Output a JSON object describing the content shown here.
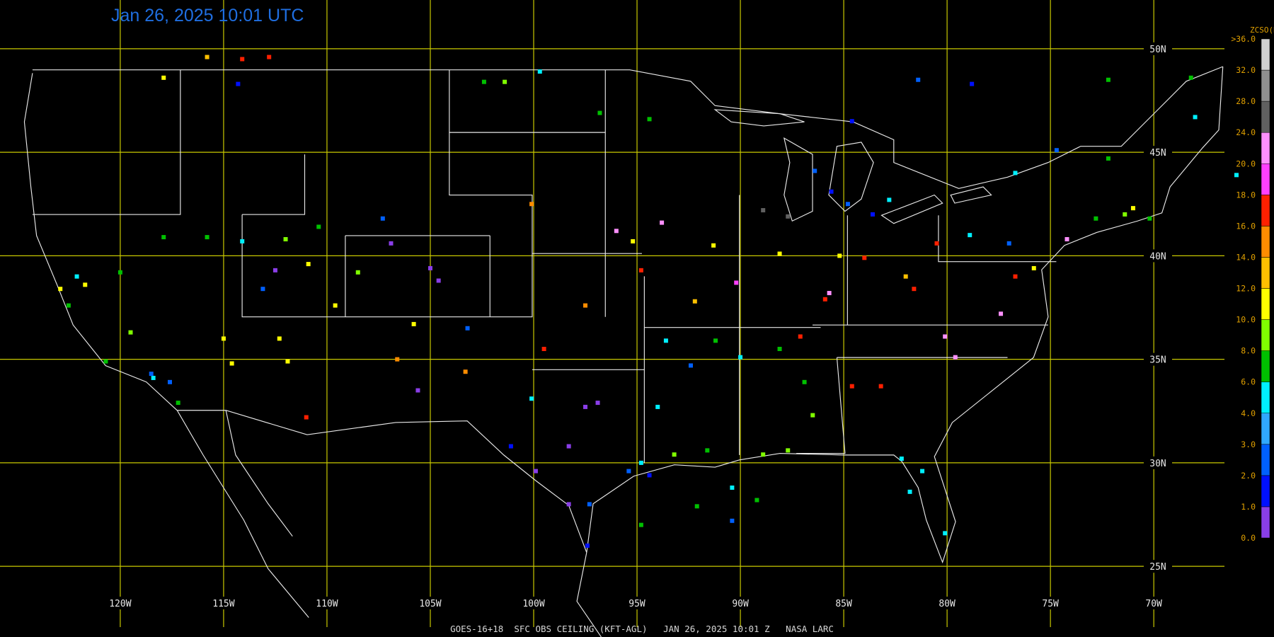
{
  "title": "Jan 26, 2025 10:01 UTC",
  "footer": "GOES-16+18  SFC OBS CEILING (KFT-AGL)   JAN 26, 2025 10:01 Z   NASA LARC",
  "map": {
    "lon_lines": [
      {
        "value": -120,
        "label": "120W"
      },
      {
        "value": -115,
        "label": "115W"
      },
      {
        "value": -110,
        "label": "110W"
      },
      {
        "value": -105,
        "label": "105W"
      },
      {
        "value": -100,
        "label": "100W"
      },
      {
        "value": -95,
        "label": "95W"
      },
      {
        "value": -90,
        "label": "90W"
      },
      {
        "value": -85,
        "label": "85W"
      },
      {
        "value": -80,
        "label": "80W"
      },
      {
        "value": -75,
        "label": "75W"
      },
      {
        "value": -70,
        "label": "70W"
      }
    ],
    "lat_lines": [
      {
        "value": 50,
        "label": "50N"
      },
      {
        "value": 45,
        "label": "45N"
      },
      {
        "value": 40,
        "label": "40N"
      },
      {
        "value": 35,
        "label": "35N"
      },
      {
        "value": 30,
        "label": "30N"
      },
      {
        "value": 25,
        "label": "25N"
      }
    ],
    "grid_color": "#c8c800"
  },
  "colorbar": {
    "title": "ZCSO(Kft)",
    "ticks": [
      {
        "value": 0,
        "label": "0.0"
      },
      {
        "value": 1,
        "label": "1.0"
      },
      {
        "value": 2,
        "label": "2.0"
      },
      {
        "value": 3,
        "label": "3.0"
      },
      {
        "value": 4,
        "label": "4.0"
      },
      {
        "value": 6,
        "label": "6.0"
      },
      {
        "value": 8,
        "label": "8.0"
      },
      {
        "value": 10,
        "label": "10.0"
      },
      {
        "value": 12,
        "label": "12.0"
      },
      {
        "value": 14,
        "label": "14.0"
      },
      {
        "value": 16,
        "label": "16.0"
      },
      {
        "value": 18,
        "label": "18.0"
      },
      {
        "value": 20,
        "label": "20.0"
      },
      {
        "value": 24,
        "label": "24.0"
      },
      {
        "value": 28,
        "label": "28.0"
      },
      {
        "value": 32,
        "label": "32.0"
      },
      {
        "value": 36,
        "label": ">36.0"
      }
    ],
    "colors": [
      "#8a3ee8",
      "#0010ff",
      "#0060ff",
      "#30a8ff",
      "#00f0ff",
      "#00c000",
      "#80ff00",
      "#ffff00",
      "#ffc000",
      "#ff8c00",
      "#ff2000",
      "#ff40ff",
      "#ff90ff",
      "#606060",
      "#909090",
      "#d0d0d0"
    ]
  },
  "stations": {
    "lon": [
      -115.8,
      -114.1,
      -112.8,
      -117.9,
      -114.3,
      -102.4,
      -101.4,
      -99.7,
      -96.8,
      -94.4,
      -81.4,
      -78.8,
      -72.2,
      -68.2,
      -68.0,
      -84.6,
      -86.4,
      -85.6,
      -84.8,
      -83.6,
      -82.8,
      -80.5,
      -78.9,
      -77.0,
      -74.2,
      -72.8,
      -71.4,
      -70.2,
      -76.7,
      -81.6,
      -80.1,
      -84.6,
      -83.2,
      -87.1,
      -88.1,
      -86.9,
      -86.5,
      -87.7,
      -88.9,
      -90.0,
      -91.2,
      -92.4,
      -93.6,
      -94.0,
      -94.8,
      -93.2,
      -91.6,
      -96.9,
      -97.5,
      -98.3,
      -99.9,
      -95.4,
      -94.4,
      -97.3,
      -97.4,
      -98.3,
      -101.1,
      -99.5,
      -97.5,
      -92.2,
      -94.8,
      -96.0,
      -93.8,
      -95.2,
      -91.3,
      -88.1,
      -88.9,
      -87.7,
      -90.2,
      -85.9,
      -85.7,
      -82.0,
      -84.0,
      -85.2,
      -100.1,
      -105.0,
      -104.6,
      -105.8,
      -106.6,
      -105.6,
      -103.3,
      -103.2,
      -107.3,
      -106.9,
      -111.0,
      -111.9,
      -112.3,
      -114.1,
      -112.5,
      -113.1,
      -110.9,
      -109.6,
      -110.4,
      -112.0,
      -120.0,
      -122.1,
      -122.5,
      -121.7,
      -122.9,
      -120.7,
      -118.4,
      -117.6,
      -117.2,
      -118.5,
      -119.5,
      -115.8,
      -117.9,
      -115.0,
      -114.6,
      -108.5,
      -81.2,
      -81.8,
      -80.1,
      -82.2,
      -71.0,
      -74.7,
      -76.7,
      -75.8,
      -77.4,
      -79.6,
      -90.4,
      -89.2,
      -94.8,
      -92.1,
      -90.4,
      -66.0,
      -72.2,
      -100.1
    ],
    "lat": [
      49.6,
      49.5,
      49.6,
      48.6,
      48.3,
      48.4,
      48.4,
      48.9,
      46.9,
      46.6,
      48.5,
      48.3,
      48.5,
      48.6,
      46.7,
      46.5,
      44.1,
      43.1,
      42.5,
      42.0,
      42.7,
      40.6,
      41.0,
      40.6,
      40.8,
      41.8,
      42.0,
      41.8,
      39.0,
      38.4,
      36.1,
      33.7,
      33.7,
      36.1,
      35.5,
      33.9,
      32.3,
      30.6,
      30.4,
      35.1,
      35.9,
      34.7,
      35.9,
      32.7,
      30.0,
      30.4,
      30.6,
      32.9,
      32.7,
      30.8,
      29.6,
      29.6,
      29.4,
      28.0,
      26.0,
      28.0,
      30.8,
      35.5,
      37.6,
      37.8,
      39.3,
      41.2,
      41.6,
      40.7,
      40.5,
      40.1,
      42.2,
      41.9,
      38.7,
      37.9,
      38.2,
      39.0,
      39.9,
      40.0,
      42.5,
      39.4,
      38.8,
      36.7,
      35.0,
      33.5,
      34.4,
      36.5,
      41.8,
      40.6,
      32.2,
      34.9,
      36.0,
      40.7,
      39.3,
      38.4,
      39.6,
      37.6,
      41.4,
      40.8,
      39.2,
      39.0,
      37.6,
      38.6,
      38.4,
      34.9,
      34.1,
      33.9,
      32.9,
      34.3,
      36.3,
      40.9,
      40.9,
      36.0,
      34.8,
      39.2,
      29.6,
      28.6,
      26.6,
      30.2,
      42.3,
      45.1,
      44.0,
      39.4,
      37.2,
      35.1,
      28.8,
      28.2,
      27.0,
      27.9,
      27.2,
      43.9,
      44.7,
      33.1
    ],
    "ceiling": [
      13,
      17,
      17,
      11,
      1.5,
      7,
      9,
      5,
      7,
      7,
      2.5,
      1.5,
      7,
      7,
      5,
      1.5,
      2.5,
      1.5,
      2.5,
      1.5,
      5,
      17,
      5,
      2.5,
      22,
      7,
      9,
      7,
      17,
      17,
      22,
      17,
      17,
      17,
      7,
      7,
      9,
      9,
      9,
      5,
      7,
      2.5,
      5,
      5,
      5,
      9,
      7,
      0.5,
      0.5,
      0.5,
      0.5,
      2.5,
      1.5,
      2.5,
      1.5,
      0.5,
      1.5,
      17,
      14,
      13,
      17,
      22,
      22,
      11,
      11,
      11,
      26,
      26,
      19,
      17,
      22,
      13,
      17,
      11,
      14,
      0.5,
      0.5,
      11,
      14,
      0.5,
      14,
      2.5,
      2.5,
      0.5,
      17,
      11,
      11,
      5,
      0.5,
      2.5,
      11,
      11,
      7,
      9,
      7,
      5,
      7,
      11,
      11,
      7,
      5,
      2.5,
      7,
      2.5,
      9,
      7,
      7,
      11,
      11,
      9,
      5,
      5,
      5,
      5,
      11,
      2.5,
      5,
      11,
      22,
      22,
      5,
      7,
      7,
      7,
      2.5,
      5,
      7,
      5
    ]
  }
}
